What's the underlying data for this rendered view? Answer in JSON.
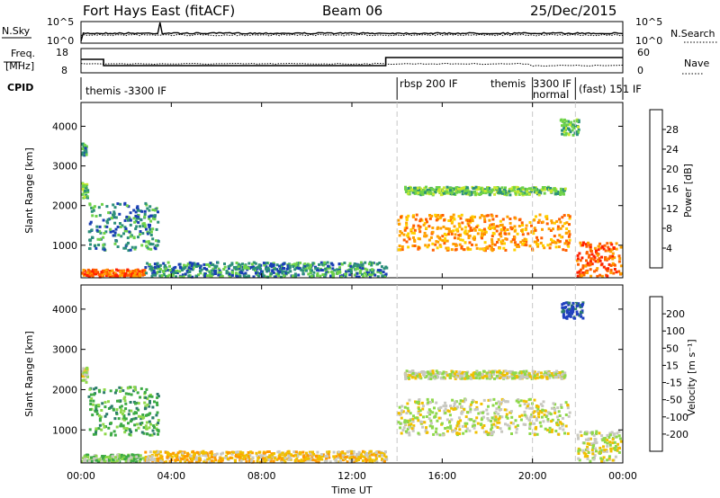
{
  "header": {
    "radar": "Fort Hays East (fitACF)",
    "beam": "Beam 06",
    "date": "25/Dec/2015"
  },
  "top_panels": {
    "nsky_label": "N.Sky",
    "nsearch_label": "N.Search",
    "nsky_ticks": [
      "10^5",
      "10^0"
    ],
    "nsearch_ticks": [
      "10^5",
      "10^0"
    ],
    "freq_label": [
      "Freq.",
      "[MHz]"
    ],
    "freq_ticks": [
      "18",
      "8"
    ],
    "nave_label": "Nave",
    "nave_ticks": [
      "60",
      "0"
    ],
    "cpid_label": "CPID",
    "cpid_segments": [
      {
        "label": "themis -3300 IF",
        "start": 0
      },
      {
        "label": "rbsp 200 IF",
        "start": 14.0
      },
      {
        "label": "themis",
        "start": 17.3
      },
      {
        "label": "3300 IF",
        "start": 20.0
      },
      {
        "label": "normal",
        "start": 20.0
      },
      {
        "label": "(fast) 151 IF",
        "start": 21.9
      }
    ]
  },
  "colorbars": {
    "power": {
      "label": "Power [dB]",
      "ticks": [
        "28",
        "24",
        "20",
        "16",
        "12",
        "8",
        "4"
      ],
      "colors": [
        "#0000ff",
        "#1a3fb4",
        "#2c8f7a",
        "#6ed24a",
        "#c8e830",
        "#ffd000",
        "#ffa000",
        "#ff6000",
        "#ff2000",
        "#e00000"
      ]
    },
    "velocity": {
      "label": "Velocity [m s⁻¹]",
      "ticks": [
        "200",
        "100",
        "50",
        "15",
        "-15",
        "-50",
        "-100",
        "-200"
      ],
      "colors": [
        "#2040c0",
        "#2c7d6a",
        "#3caa44",
        "#8ed84a",
        "#c8c8c0",
        "#f0c000",
        "#ff9a00",
        "#ff5000",
        "#e00000"
      ]
    }
  },
  "chart_data": [
    {
      "type": "heatmap",
      "title": "",
      "xlabel": "",
      "ylabel": "Slant Range [km]",
      "xlim": [
        0,
        24
      ],
      "ylim": [
        180,
        4600
      ],
      "yticks": [
        1000,
        2000,
        3000,
        4000
      ],
      "xticks": [
        0,
        4,
        8,
        12,
        16,
        20,
        24
      ],
      "quantity": "Power [dB]",
      "regions": [
        {
          "t0": 0.0,
          "t1": 0.25,
          "r0": 2200,
          "r1": 2600,
          "level": 3
        },
        {
          "t0": 0.0,
          "t1": 0.2,
          "r0": 3300,
          "r1": 3600,
          "level": 2
        },
        {
          "t0": 0.3,
          "t1": 3.4,
          "r0": 900,
          "r1": 2100,
          "level": 2
        },
        {
          "t0": 0.0,
          "t1": 2.8,
          "r0": 230,
          "r1": 420,
          "level": 7
        },
        {
          "t0": 2.8,
          "t1": 13.5,
          "r0": 230,
          "r1": 600,
          "level": 2
        },
        {
          "t0": 14.0,
          "t1": 21.6,
          "r0": 900,
          "r1": 1800,
          "level": 6
        },
        {
          "t0": 14.3,
          "t1": 21.4,
          "r0": 2300,
          "r1": 2500,
          "level": 3
        },
        {
          "t0": 21.9,
          "t1": 24.0,
          "r0": 250,
          "r1": 1100,
          "level": 7
        },
        {
          "t0": 21.2,
          "t1": 22.0,
          "r0": 3800,
          "r1": 4200,
          "level": 3
        }
      ]
    },
    {
      "type": "heatmap",
      "title": "",
      "xlabel": "Time UT",
      "ylabel": "Slant Range [km]",
      "xlim": [
        0,
        24
      ],
      "ylim": [
        180,
        4600
      ],
      "yticks": [
        1000,
        2000,
        3000,
        4000
      ],
      "xticks": [
        0,
        4,
        8,
        12,
        16,
        20,
        24
      ],
      "xticklabels": [
        "00:00",
        "04:00",
        "08:00",
        "12:00",
        "16:00",
        "20:00",
        "00:00"
      ],
      "quantity": "Velocity [m s⁻¹]",
      "regions": [
        {
          "t0": 0.0,
          "t1": 0.25,
          "r0": 2200,
          "r1": 2600,
          "level": 4
        },
        {
          "t0": 0.3,
          "t1": 3.4,
          "r0": 900,
          "r1": 2100,
          "level": 2
        },
        {
          "t0": 0.0,
          "t1": 2.8,
          "r0": 230,
          "r1": 420,
          "level": 3
        },
        {
          "t0": 2.8,
          "t1": 13.5,
          "r0": 230,
          "r1": 500,
          "level": 5
        },
        {
          "t0": 14.0,
          "t1": 21.6,
          "r0": 900,
          "r1": 1800,
          "level": 4
        },
        {
          "t0": 14.3,
          "t1": 21.4,
          "r0": 2300,
          "r1": 2500,
          "level": 4
        },
        {
          "t0": 21.9,
          "t1": 24.0,
          "r0": 250,
          "r1": 1000,
          "level": 4
        },
        {
          "t0": 21.2,
          "t1": 22.2,
          "r0": 3800,
          "r1": 4200,
          "level": 0
        }
      ]
    }
  ],
  "xaxis": {
    "label": "Time UT",
    "ticks": [
      "00:00",
      "04:00",
      "08:00",
      "12:00",
      "16:00",
      "20:00",
      "00:00"
    ]
  }
}
